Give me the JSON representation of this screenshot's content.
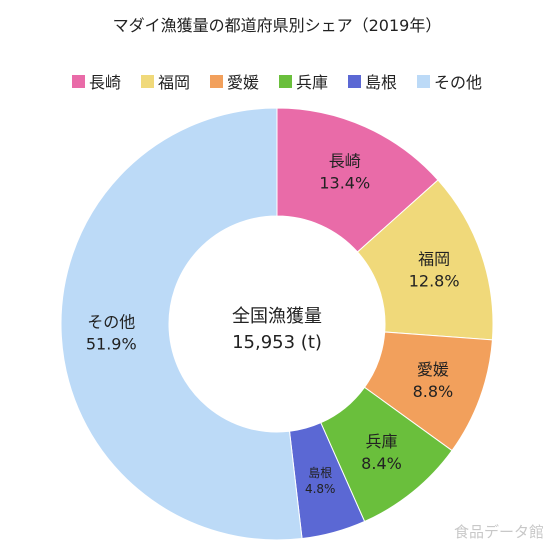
{
  "chart_data": {
    "type": "pie",
    "title": "マダイ漁獲量の都道府県別シェア（2019年）",
    "center_label": {
      "line1": "全国漁獲量",
      "line2": "15,953 (t)"
    },
    "legend_position": "top",
    "slices": [
      {
        "name": "長崎",
        "value": 13.4,
        "value_label": "13.4%",
        "color": "#e96ba8"
      },
      {
        "name": "福岡",
        "value": 12.8,
        "value_label": "12.8%",
        "color": "#f0d97a"
      },
      {
        "name": "愛媛",
        "value": 8.8,
        "value_label": "8.8%",
        "color": "#f2a05c"
      },
      {
        "name": "兵庫",
        "value": 8.4,
        "value_label": "8.4%",
        "color": "#6abf3c"
      },
      {
        "name": "島根",
        "value": 4.8,
        "value_label": "4.8%",
        "color": "#5b68d4"
      },
      {
        "name": "その他",
        "value": 51.9,
        "value_label": "51.9%",
        "color": "#bcdaf7"
      }
    ]
  },
  "watermark": "食品データ館"
}
